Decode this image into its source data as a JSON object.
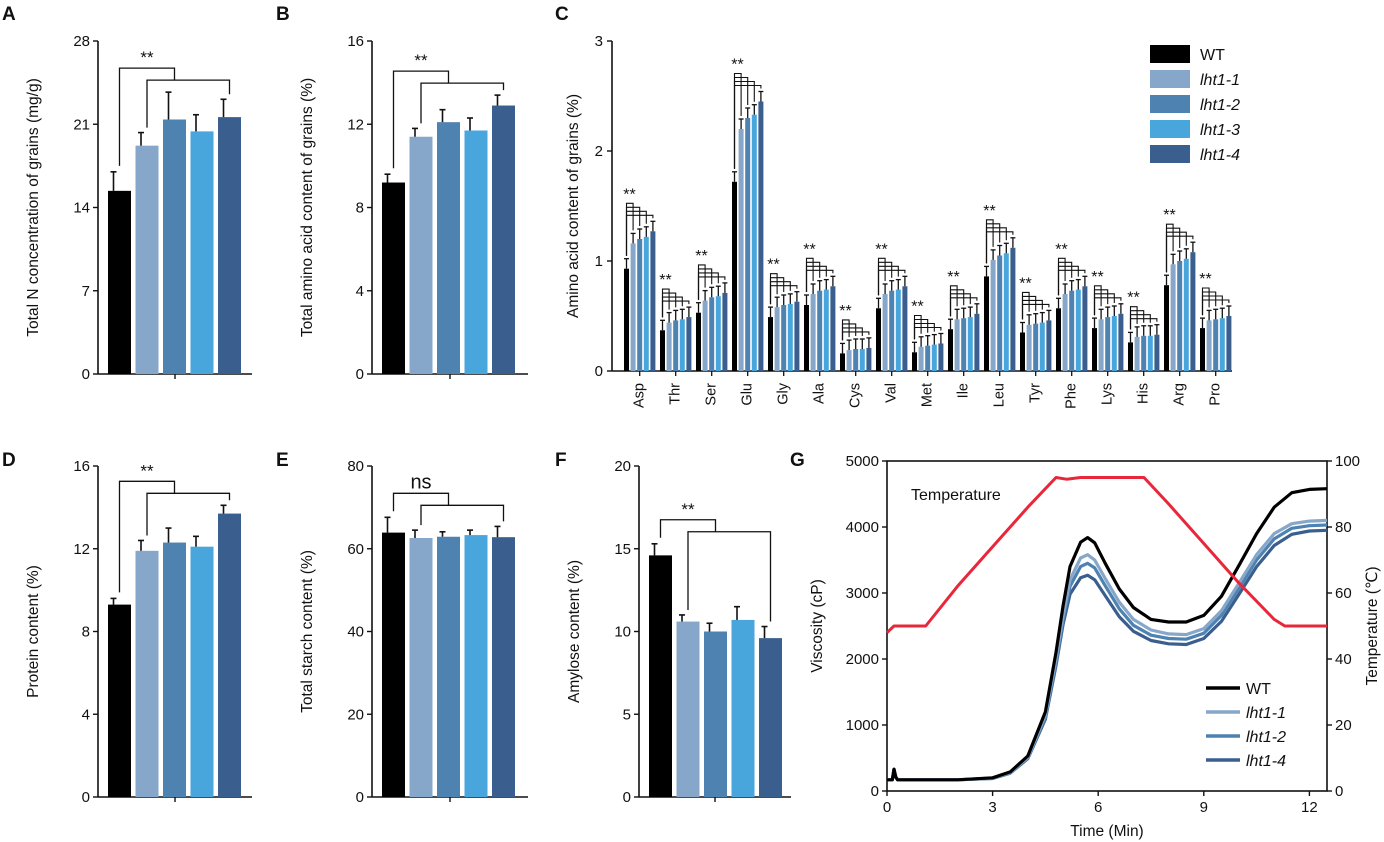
{
  "colors": {
    "WT": "#000000",
    "lht1-1": "#86a7c9",
    "lht1-2": "#4e82b1",
    "lht1-3": "#48a6dc",
    "lht1-4": "#3a5f8e",
    "temperature": "#e8283a",
    "axis": "#111111"
  },
  "chart_data": [
    {
      "panel": "A",
      "type": "bar",
      "title": "",
      "ylabel": "Total N concentration of grains (mg/g)",
      "ylim": [
        0,
        28
      ],
      "yticks": [
        "0",
        "7",
        "14",
        "21",
        "28"
      ],
      "categories": [
        "WT",
        "lht1-1",
        "lht1-2",
        "lht1-3",
        "lht1-4"
      ],
      "values": [
        15.4,
        19.2,
        21.4,
        20.4,
        21.6
      ],
      "errors": [
        1.6,
        1.1,
        2.3,
        1.4,
        1.5
      ],
      "sig": "**"
    },
    {
      "panel": "B",
      "type": "bar",
      "title": "",
      "ylabel": "Total amino acid content of grains (%)",
      "ylim": [
        0,
        16
      ],
      "yticks": [
        "0",
        "4",
        "8",
        "12",
        "16"
      ],
      "categories": [
        "WT",
        "lht1-1",
        "lht1-2",
        "lht1-3",
        "lht1-4"
      ],
      "values": [
        9.2,
        11.4,
        12.1,
        11.7,
        12.9
      ],
      "errors": [
        0.4,
        0.4,
        0.6,
        0.6,
        0.5
      ],
      "sig": "**"
    },
    {
      "panel": "C",
      "type": "bar",
      "title": "",
      "ylabel": "Amino acid content of grains (%)",
      "ylim": [
        0,
        3
      ],
      "yticks": [
        "0",
        "1",
        "2",
        "3"
      ],
      "categories": [
        "Asp",
        "Thr",
        "Ser",
        "Glu",
        "Gly",
        "Ala",
        "Cys",
        "Val",
        "Met",
        "Ile",
        "Leu",
        "Tyr",
        "Phe",
        "Lys",
        "His",
        "Arg",
        "Pro"
      ],
      "legend": [
        "WT",
        "lht1-1",
        "lht1-2",
        "lht1-3",
        "lht1-4"
      ],
      "series": [
        {
          "name": "WT",
          "values": [
            0.93,
            0.37,
            0.53,
            1.72,
            0.49,
            0.6,
            0.16,
            0.57,
            0.17,
            0.38,
            0.86,
            0.35,
            0.57,
            0.39,
            0.26,
            0.78,
            0.39
          ]
        },
        {
          "name": "lht1-1",
          "values": [
            1.16,
            0.44,
            0.64,
            2.2,
            0.58,
            0.7,
            0.19,
            0.7,
            0.22,
            0.47,
            1.01,
            0.42,
            0.7,
            0.47,
            0.31,
            0.97,
            0.46
          ]
        },
        {
          "name": "lht1-2",
          "values": [
            1.2,
            0.46,
            0.67,
            2.3,
            0.6,
            0.73,
            0.2,
            0.73,
            0.23,
            0.48,
            1.05,
            0.43,
            0.73,
            0.49,
            0.32,
            1.0,
            0.47
          ]
        },
        {
          "name": "lht1-3",
          "values": [
            1.22,
            0.47,
            0.68,
            2.33,
            0.61,
            0.74,
            0.2,
            0.74,
            0.24,
            0.49,
            1.07,
            0.44,
            0.74,
            0.5,
            0.32,
            1.02,
            0.48
          ]
        },
        {
          "name": "lht1-4",
          "values": [
            1.27,
            0.49,
            0.71,
            2.45,
            0.63,
            0.77,
            0.21,
            0.77,
            0.25,
            0.52,
            1.12,
            0.46,
            0.77,
            0.52,
            0.33,
            1.08,
            0.5
          ]
        }
      ],
      "sig": "**"
    },
    {
      "panel": "D",
      "type": "bar",
      "title": "",
      "ylabel": "Protein content (%)",
      "ylim": [
        0,
        16
      ],
      "yticks": [
        "0",
        "4",
        "8",
        "12",
        "16"
      ],
      "categories": [
        "WT",
        "lht1-1",
        "lht1-2",
        "lht1-3",
        "lht1-4"
      ],
      "values": [
        9.3,
        11.9,
        12.3,
        12.1,
        13.7
      ],
      "errors": [
        0.3,
        0.5,
        0.7,
        0.5,
        0.4
      ],
      "sig": "**"
    },
    {
      "panel": "E",
      "type": "bar",
      "title": "",
      "ylabel": "Total starch content (%)",
      "ylim": [
        0,
        80
      ],
      "yticks": [
        "0",
        "20",
        "40",
        "60",
        "80"
      ],
      "categories": [
        "WT",
        "lht1-1",
        "lht1-2",
        "lht1-3",
        "lht1-4"
      ],
      "values": [
        63.9,
        62.6,
        62.9,
        63.3,
        62.8
      ],
      "errors": [
        3.7,
        1.9,
        1.2,
        1.2,
        2.6
      ],
      "sig": "ns"
    },
    {
      "panel": "F",
      "type": "bar",
      "title": "",
      "ylabel": "Amylose content (%)",
      "ylim": [
        0,
        20
      ],
      "yticks": [
        "0",
        "5",
        "10",
        "15",
        "20"
      ],
      "categories": [
        "WT",
        "lht1-1",
        "lht1-2",
        "lht1-3",
        "lht1-4"
      ],
      "values": [
        14.6,
        10.6,
        10.0,
        10.7,
        9.6
      ],
      "errors": [
        0.7,
        0.4,
        0.5,
        0.8,
        0.7
      ],
      "sig": "**"
    },
    {
      "panel": "G",
      "type": "line",
      "title": "",
      "xlabel": "Time (Min)",
      "ylabel": "Viscosity (cP)",
      "y2label": "Temperature (℃)",
      "xlim": [
        0,
        12.5
      ],
      "ylim": [
        0,
        5000
      ],
      "y2lim": [
        0,
        100
      ],
      "xticks": [
        "0",
        "3",
        "6",
        "9",
        "12"
      ],
      "yticks": [
        "0",
        "1000",
        "2000",
        "3000",
        "4000",
        "5000"
      ],
      "y2ticks": [
        "0",
        "20",
        "40",
        "60",
        "80",
        "100"
      ],
      "annotation": "Temperature",
      "series": [
        {
          "name": "WT",
          "x": [
            0,
            0.15,
            0.2,
            0.25,
            0.3,
            0.4,
            1,
            2,
            3,
            3.5,
            4,
            4.5,
            4.8,
            5,
            5.2,
            5.5,
            5.7,
            5.9,
            6.2,
            6.6,
            7,
            7.5,
            8,
            8.5,
            9,
            9.5,
            10,
            10.5,
            11,
            11.5,
            12,
            12.5
          ],
          "y": [
            170,
            170,
            330,
            210,
            170,
            170,
            170,
            170,
            200,
            290,
            530,
            1200,
            2100,
            2800,
            3400,
            3770,
            3840,
            3760,
            3450,
            3060,
            2780,
            2600,
            2560,
            2560,
            2660,
            2950,
            3420,
            3900,
            4300,
            4520,
            4570,
            4580
          ]
        },
        {
          "name": "lht1-1",
          "x": [
            0,
            0.15,
            0.2,
            0.25,
            0.3,
            0.4,
            1,
            2,
            3,
            3.5,
            4,
            4.5,
            4.8,
            5,
            5.2,
            5.5,
            5.7,
            5.9,
            6.2,
            6.6,
            7,
            7.5,
            8,
            8.5,
            9,
            9.5,
            10,
            10.5,
            11,
            11.5,
            12,
            12.5
          ],
          "y": [
            170,
            170,
            330,
            210,
            170,
            170,
            170,
            170,
            195,
            280,
            510,
            1150,
            2000,
            2650,
            3200,
            3530,
            3580,
            3500,
            3220,
            2860,
            2600,
            2440,
            2380,
            2370,
            2460,
            2730,
            3150,
            3580,
            3900,
            4050,
            4090,
            4100
          ]
        },
        {
          "name": "lht1-2",
          "x": [
            0,
            0.15,
            0.2,
            0.25,
            0.3,
            0.4,
            1,
            2,
            3,
            3.5,
            4,
            4.5,
            4.8,
            5,
            5.2,
            5.5,
            5.7,
            5.9,
            6.2,
            6.6,
            7,
            7.5,
            8,
            8.5,
            9,
            9.5,
            10,
            10.5,
            11,
            11.5,
            12,
            12.5
          ],
          "y": [
            170,
            170,
            330,
            210,
            170,
            170,
            170,
            170,
            195,
            275,
            500,
            1120,
            1950,
            2580,
            3100,
            3400,
            3450,
            3380,
            3110,
            2760,
            2510,
            2360,
            2310,
            2300,
            2390,
            2660,
            3070,
            3500,
            3820,
            3980,
            4020,
            4030
          ]
        },
        {
          "name": "lht1-4",
          "x": [
            0,
            0.15,
            0.2,
            0.25,
            0.3,
            0.4,
            1,
            2,
            3,
            3.5,
            4,
            4.5,
            4.8,
            5,
            5.2,
            5.5,
            5.7,
            5.9,
            6.2,
            6.6,
            7,
            7.5,
            8,
            8.5,
            9,
            9.5,
            10,
            10.5,
            11,
            11.5,
            12,
            12.5
          ],
          "y": [
            170,
            170,
            330,
            210,
            170,
            170,
            170,
            170,
            190,
            270,
            490,
            1090,
            1900,
            2520,
            2980,
            3230,
            3270,
            3200,
            2960,
            2640,
            2420,
            2280,
            2230,
            2220,
            2310,
            2570,
            2980,
            3400,
            3720,
            3890,
            3940,
            3950
          ]
        },
        {
          "name": "Temperature",
          "axis": "y2",
          "x": [
            0,
            0.2,
            0.5,
            1.1,
            2,
            3,
            4,
            4.8,
            5.1,
            5.5,
            7.3,
            8,
            9,
            10,
            11,
            11.3,
            12.5
          ],
          "y": [
            48,
            50,
            50,
            50,
            62,
            74,
            86,
            95,
            94.5,
            95,
            95,
            87,
            75,
            63,
            52,
            50,
            50
          ]
        }
      ],
      "legend": [
        "WT",
        "lht1-1",
        "lht1-2",
        "lht1-4"
      ]
    }
  ]
}
